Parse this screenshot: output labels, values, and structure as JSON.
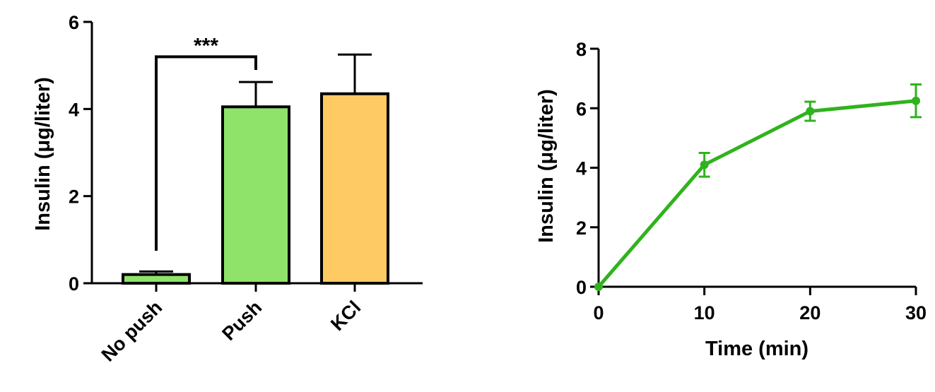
{
  "chart_data": [
    {
      "type": "bar",
      "categories": [
        "No push",
        "Push",
        "KCl"
      ],
      "values": [
        0.2,
        4.05,
        4.35
      ],
      "errors": [
        0.07,
        0.57,
        0.9
      ],
      "colors": [
        "#90e36a",
        "#90e36a",
        "#fdca63"
      ],
      "ylabel": "Insulin (μg/liter)",
      "ylim": [
        0,
        6
      ],
      "yticks": [
        "0",
        "2",
        "4",
        "6"
      ],
      "significance": {
        "between": [
          "No push",
          "Push"
        ],
        "label": "***",
        "level": 5.2
      }
    },
    {
      "type": "line",
      "x": [
        0,
        10,
        20,
        30
      ],
      "y": [
        0,
        4.1,
        5.9,
        6.25
      ],
      "errors": [
        0,
        0.4,
        0.32,
        0.55
      ],
      "color": "#2fb31c",
      "xlabel": "Time (min)",
      "ylabel": "Insulin (μg/liter)",
      "xlim": [
        0,
        30
      ],
      "ylim": [
        0,
        8
      ],
      "xticks": [
        "0",
        "10",
        "20",
        "30"
      ],
      "yticks": [
        "0",
        "2",
        "4",
        "6",
        "8"
      ]
    }
  ]
}
